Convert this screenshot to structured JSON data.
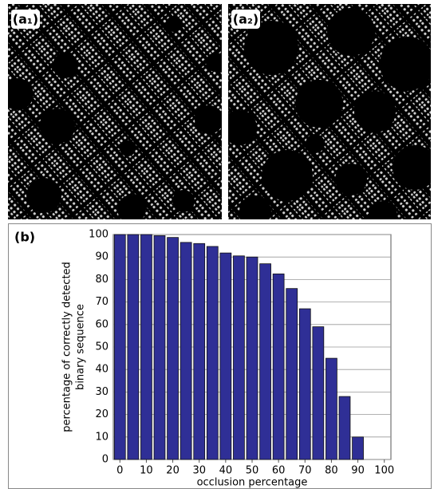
{
  "panels": [
    {
      "label": "(a₁)"
    },
    {
      "label": "(a₂)"
    }
  ],
  "chart_data": {
    "type": "bar",
    "label": "(b)",
    "xlabel": "occlusion percentage",
    "ylabel": [
      "percentage of correctly detected",
      "binary sequence"
    ],
    "x": [
      0,
      5,
      10,
      15,
      20,
      25,
      30,
      35,
      40,
      45,
      50,
      55,
      60,
      65,
      70,
      75,
      80,
      85,
      90
    ],
    "values": [
      100,
      100,
      100,
      99.5,
      98.7,
      96.5,
      96,
      94.7,
      91.8,
      90.5,
      90,
      87,
      82.5,
      76,
      67,
      59,
      45,
      28,
      10
    ],
    "color": "#2f2f96",
    "xlim": [
      -2.5,
      102.5
    ],
    "xticks": [
      0,
      10,
      20,
      30,
      40,
      50,
      60,
      70,
      80,
      90,
      100
    ],
    "ylim": [
      0,
      100
    ],
    "yticks": [
      0,
      10,
      20,
      30,
      40,
      50,
      60,
      70,
      80,
      90,
      100
    ],
    "grid": true
  }
}
